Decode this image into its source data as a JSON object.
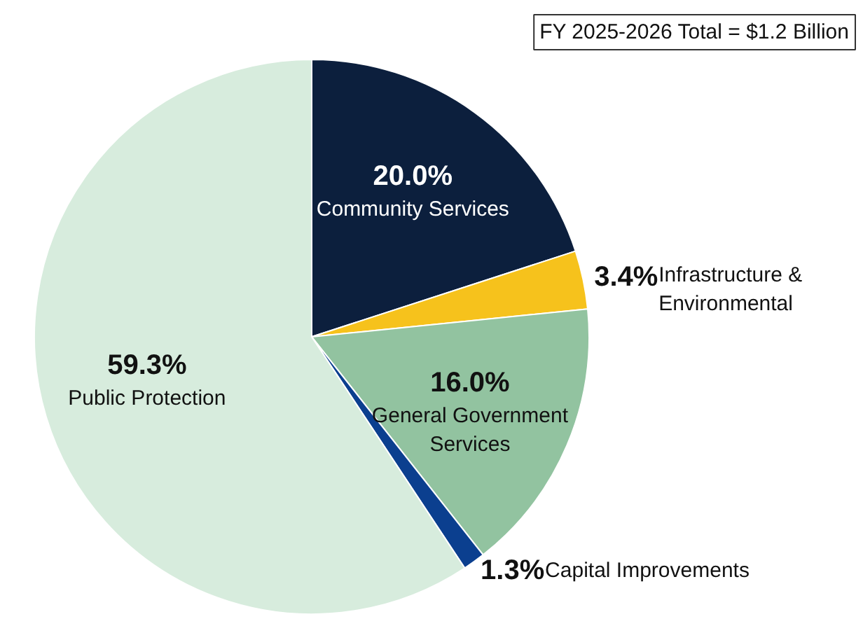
{
  "chart_data": {
    "type": "pie",
    "categories": [
      "Community Services",
      "Infrastructure & Environmental",
      "General Government Services",
      "Capital Improvements",
      "Public Protection"
    ],
    "values": [
      20.0,
      3.4,
      16.0,
      1.3,
      59.3
    ],
    "colors": [
      "#0c1f3d",
      "#f6c21c",
      "#92c3a0",
      "#0b3f8f",
      "#d7ecdd"
    ],
    "value_labels": [
      "20.0%",
      "3.4%",
      "16.0%",
      "1.3%",
      "59.3%"
    ],
    "annotations": [
      "FY 2025-2026 Total = $1.2 Billion"
    ]
  }
}
